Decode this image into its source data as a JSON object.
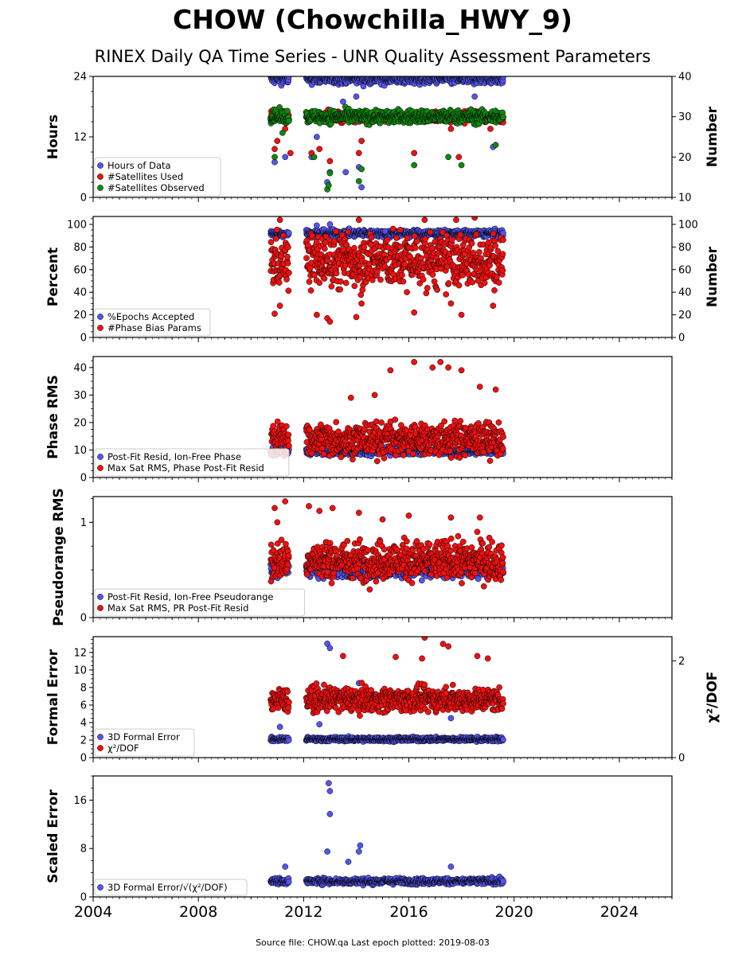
{
  "figure": {
    "title": "CHOW (Chowchilla_HWY_9)",
    "subtitle": "RINEX Daily QA Time Series - UNR Quality Assessment Parameters",
    "source_note": "Source file: CHOW.qa Last epoch plotted: 2019-08-03"
  },
  "colors": {
    "blue": "#5555ee",
    "red": "#ee1111",
    "green": "#118811"
  },
  "chart_data": [
    {
      "type": "scatter",
      "xlim": [
        2004,
        2026
      ],
      "xticks": [
        2004,
        2008,
        2012,
        2016,
        2020,
        2024
      ],
      "ylabel": "Hours",
      "ylim": [
        0,
        24
      ],
      "yticks": [
        0,
        12,
        24
      ],
      "right_axis": {
        "label": "Number",
        "ylim": [
          10,
          40
        ],
        "ticks": [
          10,
          20,
          30,
          40
        ]
      },
      "legend_position": "lower-left",
      "series": [
        {
          "name": "Hours of Data",
          "color": "blue",
          "axis": "left",
          "center": 23.5,
          "spread": 0.5,
          "outliers": [
            [
              2010.9,
              7
            ],
            [
              2011.3,
              8
            ],
            [
              2012.3,
              8
            ],
            [
              2012.5,
              12
            ],
            [
              2012.9,
              3
            ],
            [
              2013.0,
              5
            ],
            [
              2013.6,
              5
            ],
            [
              2014.2,
              2
            ],
            [
              2014.1,
              6
            ],
            [
              2014.0,
              20
            ],
            [
              2013.5,
              19
            ],
            [
              2018.5,
              20
            ],
            [
              2019.2,
              10
            ]
          ]
        },
        {
          "name": "#Satellites Used",
          "color": "red",
          "axis": "right",
          "center": 30,
          "spread": 0.6,
          "outliers": [
            [
              2010.9,
              22
            ],
            [
              2011.0,
              24
            ],
            [
              2011.3,
              27
            ],
            [
              2011.5,
              21
            ],
            [
              2012.3,
              21
            ],
            [
              2012.6,
              22
            ],
            [
              2013.0,
              19
            ],
            [
              2014.1,
              21
            ],
            [
              2014.2,
              24
            ],
            [
              2016.2,
              21
            ],
            [
              2017.6,
              27
            ],
            [
              2017.9,
              20
            ],
            [
              2019.1,
              27
            ]
          ]
        },
        {
          "name": "#Satellites Observed",
          "color": "green",
          "axis": "right",
          "center": 30,
          "spread": 0.8,
          "outliers": [
            [
              2010.9,
              20
            ],
            [
              2011.2,
              26
            ],
            [
              2012.4,
              20
            ],
            [
              2012.9,
              12
            ],
            [
              2012.95,
              13
            ],
            [
              2013.0,
              16
            ],
            [
              2014.1,
              14
            ],
            [
              2014.2,
              17
            ],
            [
              2016.2,
              18
            ],
            [
              2017.5,
              20
            ],
            [
              2018.0,
              18
            ],
            [
              2019.3,
              23
            ]
          ]
        }
      ]
    },
    {
      "type": "scatter",
      "xlim": [
        2004,
        2026
      ],
      "ylabel": "Percent",
      "ylim": [
        0,
        107
      ],
      "yticks": [
        0,
        20,
        40,
        60,
        80,
        100
      ],
      "right_axis": {
        "label": "Number",
        "ylim": [
          0,
          107
        ],
        "ticks": [
          0,
          20,
          40,
          60,
          80,
          100
        ]
      },
      "legend_position": "lower-left",
      "series": [
        {
          "name": "%Epochs Accepted",
          "color": "blue",
          "axis": "left",
          "center": 92,
          "spread": 1.5,
          "outliers": [
            [
              2012.5,
              99
            ],
            [
              2013.0,
              100
            ],
            [
              2015.1,
              94
            ],
            [
              2016.0,
              88
            ]
          ]
        },
        {
          "name": "#Phase Bias Params",
          "color": "red",
          "axis": "right",
          "center": 68,
          "spread": 12,
          "outliers": [
            [
              2011.1,
              104
            ],
            [
              2014.1,
              104
            ],
            [
              2016.6,
              104
            ],
            [
              2017.8,
              104
            ],
            [
              2018.5,
              106
            ],
            [
              2010.9,
              21
            ],
            [
              2011.1,
              28
            ],
            [
              2012.5,
              20
            ],
            [
              2012.9,
              17
            ],
            [
              2013.0,
              14
            ],
            [
              2014.0,
              18
            ],
            [
              2014.2,
              30
            ],
            [
              2016.2,
              22
            ],
            [
              2017.6,
              30
            ],
            [
              2018.0,
              20
            ],
            [
              2019.2,
              28
            ]
          ]
        }
      ]
    },
    {
      "type": "scatter",
      "xlim": [
        2004,
        2026
      ],
      "ylabel": "Phase RMS",
      "ylim": [
        0,
        44
      ],
      "yticks": [
        0,
        10,
        20,
        30,
        40
      ],
      "legend_position": "lower-left",
      "series": [
        {
          "name": "Post-Fit Resid, Ion-Free Phase",
          "color": "blue",
          "axis": "left",
          "center": 9.5,
          "spread": 0.6,
          "outliers": []
        },
        {
          "name": "Max Sat RMS, Phase Post-Fit Resid",
          "color": "red",
          "axis": "left",
          "center": 14,
          "spread": 3,
          "outliers": [
            [
              2015.3,
              39
            ],
            [
              2016.2,
              42
            ],
            [
              2016.9,
              40
            ],
            [
              2017.2,
              42
            ],
            [
              2017.5,
              40
            ],
            [
              2018.0,
              39
            ],
            [
              2018.7,
              33
            ],
            [
              2019.3,
              32
            ],
            [
              2014.7,
              30
            ],
            [
              2013.8,
              29
            ]
          ]
        }
      ]
    },
    {
      "type": "scatter",
      "xlim": [
        2004,
        2026
      ],
      "ylabel": "Pseudorange RMS",
      "ylim": [
        0,
        1.27
      ],
      "yticks": [
        0,
        1
      ],
      "legend_position": "lower-left",
      "series": [
        {
          "name": "Post-Fit Resid, Ion-Free Pseudorange",
          "color": "blue",
          "axis": "left",
          "center": 0.5,
          "spread": 0.04,
          "outliers": []
        },
        {
          "name": "Max Sat RMS, PR Post-Fit Resid",
          "color": "red",
          "axis": "left",
          "center": 0.6,
          "spread": 0.1,
          "outliers": [
            [
              2010.9,
              1.15
            ],
            [
              2011.0,
              1.0
            ],
            [
              2011.3,
              1.22
            ],
            [
              2012.2,
              1.17
            ],
            [
              2012.6,
              1.12
            ],
            [
              2013.1,
              1.15
            ],
            [
              2014.1,
              1.1
            ],
            [
              2015.0,
              1.03
            ],
            [
              2016.0,
              1.07
            ],
            [
              2017.6,
              1.05
            ],
            [
              2018.7,
              1.05
            ],
            [
              2018.6,
              0.9
            ]
          ]
        }
      ]
    },
    {
      "type": "scatter",
      "xlim": [
        2004,
        2026
      ],
      "ylabel": "Formal Error",
      "ylim": [
        0,
        13.8
      ],
      "yticks": [
        0,
        2,
        4,
        6,
        8,
        10,
        12
      ],
      "right_axis": {
        "label": "χ²/DOF",
        "ylim": [
          0,
          2.5
        ],
        "ticks": [
          0,
          2
        ]
      },
      "legend_position": "lower-left",
      "series": [
        {
          "name": "3D Formal Error",
          "color": "blue",
          "axis": "left",
          "center": 2.1,
          "spread": 0.12,
          "outliers": [
            [
              2012.9,
              13
            ],
            [
              2013.0,
              12.5
            ],
            [
              2014.1,
              8.5
            ],
            [
              2017.6,
              4.5
            ],
            [
              2011.1,
              3.5
            ],
            [
              2012.6,
              3.8
            ]
          ]
        },
        {
          "name": "χ²/DOF",
          "color": "red",
          "axis": "right",
          "center": 1.2,
          "spread": 0.12,
          "outliers": [
            [
              2016.6,
              2.48
            ],
            [
              2017.3,
              2.35
            ],
            [
              2017.5,
              2.3
            ],
            [
              2013.5,
              2.1
            ],
            [
              2015.5,
              2.08
            ],
            [
              2016.5,
              2.05
            ],
            [
              2018.6,
              2.1
            ],
            [
              2019.0,
              2.05
            ]
          ]
        }
      ]
    },
    {
      "type": "scatter",
      "xlim": [
        2004,
        2026
      ],
      "ylabel": "Scaled Error",
      "ylim": [
        0,
        20
      ],
      "yticks": [
        0,
        8,
        16
      ],
      "legend_position": "lower-left",
      "series": [
        {
          "name": "3D Formal Error/√(χ²/DOF)",
          "color": "blue",
          "axis": "left",
          "center": 2.6,
          "spread": 0.25,
          "outliers": [
            [
              2012.95,
              18.8
            ],
            [
              2013.0,
              17.5
            ],
            [
              2013.0,
              13.7
            ],
            [
              2012.9,
              7.5
            ],
            [
              2014.15,
              8.5
            ],
            [
              2014.1,
              7.5
            ],
            [
              2013.7,
              5.8
            ],
            [
              2011.3,
              5
            ],
            [
              2017.6,
              5
            ]
          ]
        }
      ]
    }
  ]
}
